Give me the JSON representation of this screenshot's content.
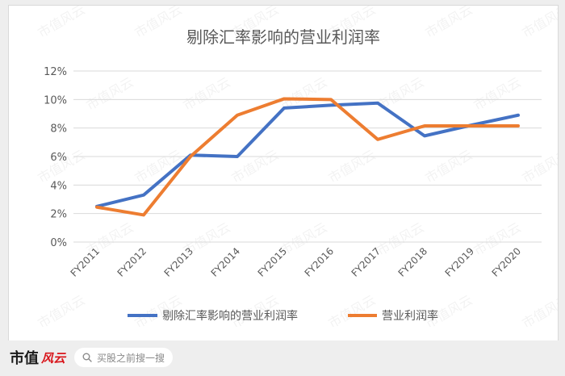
{
  "brand": {
    "name": "市值",
    "script": "风云"
  },
  "search": {
    "placeholder": "买股之前搜一搜",
    "icon": "search-icon"
  },
  "watermark": "市值风云",
  "colors": {
    "series1": "#4472c4",
    "series2": "#ed7d31",
    "grid": "#d9d9d9",
    "text": "#595959"
  },
  "chart_data": {
    "type": "line",
    "title": "剔除汇率影响的营业利润率",
    "categories": [
      "FY2011",
      "FY2012",
      "FY2013",
      "FY2014",
      "FY2015",
      "FY2016",
      "FY2017",
      "FY2018",
      "FY2019",
      "FY2020"
    ],
    "series": [
      {
        "name": "剔除汇率影响的营业利润率",
        "values": [
          2.5,
          3.3,
          6.1,
          6.0,
          9.4,
          9.6,
          9.75,
          7.45,
          8.2,
          8.9
        ]
      },
      {
        "name": "营业利润率",
        "values": [
          2.45,
          1.9,
          6.0,
          8.9,
          10.05,
          10.0,
          7.2,
          8.15,
          8.15,
          8.15
        ]
      }
    ],
    "ylim": [
      0,
      12
    ],
    "yticks": [
      "0%",
      "2%",
      "4%",
      "6%",
      "8%",
      "10%",
      "12%"
    ],
    "grid": true,
    "legend": "bottom"
  }
}
